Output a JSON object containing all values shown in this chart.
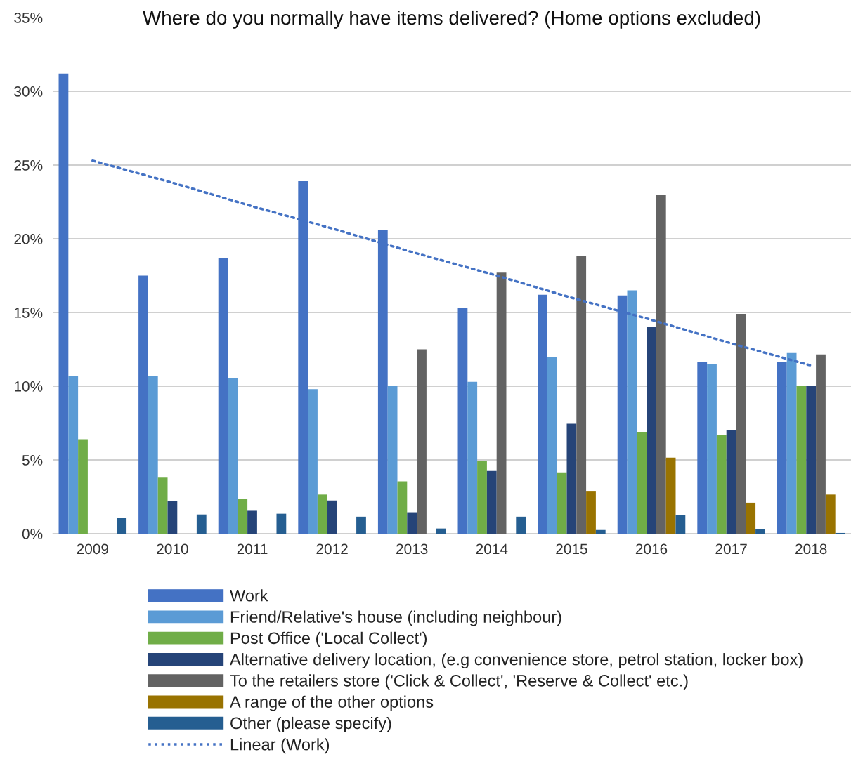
{
  "chart_data": {
    "type": "bar",
    "title": "Where do you normally have items delivered? (Home options excluded)",
    "categories": [
      "2009",
      "2010",
      "2011",
      "2012",
      "2013",
      "2014",
      "2015",
      "2016",
      "2017",
      "2018"
    ],
    "series": [
      {
        "name": "Work",
        "color": "#4472c4",
        "values": [
          31.2,
          17.5,
          18.7,
          23.9,
          20.6,
          15.3,
          16.2,
          16.15,
          11.65,
          11.65
        ]
      },
      {
        "name": "Friend/Relative's house (including neighbour)",
        "color": "#5b9bd5",
        "values": [
          10.7,
          10.7,
          10.55,
          9.8,
          10.0,
          10.3,
          12.0,
          16.5,
          11.5,
          12.25
        ]
      },
      {
        "name": "Post Office ('Local Collect')",
        "color": "#70ad47",
        "values": [
          6.4,
          3.8,
          2.35,
          2.65,
          3.55,
          4.95,
          4.15,
          6.9,
          6.7,
          10.05
        ]
      },
      {
        "name": "Alternative delivery location, (e.g convenience store, petrol station, locker box)",
        "color": "#264478",
        "values": [
          null,
          2.2,
          1.55,
          2.25,
          1.45,
          4.25,
          7.45,
          14.0,
          7.05,
          10.05
        ]
      },
      {
        "name": "To the retailers store ('Click & Collect', 'Reserve & Collect' etc.)",
        "color": "#636363",
        "values": [
          null,
          null,
          null,
          null,
          12.5,
          17.7,
          18.85,
          23.0,
          14.9,
          12.15
        ]
      },
      {
        "name": "A range of the other options",
        "color": "#997300",
        "values": [
          null,
          null,
          null,
          null,
          null,
          null,
          2.9,
          5.15,
          2.1,
          2.65
        ]
      },
      {
        "name": "Other (please specify)",
        "color": "#255e91",
        "values": [
          1.05,
          1.3,
          1.35,
          1.15,
          0.35,
          1.15,
          0.25,
          1.25,
          0.3,
          0.05
        ]
      },
      {
        "name": "Linear (Work)",
        "type": "line",
        "color": "#4472c4",
        "line_style": "dotted",
        "values": [
          25.3,
          23.8,
          22.2,
          20.7,
          19.1,
          17.6,
          16.0,
          14.5,
          12.9,
          11.4
        ]
      }
    ],
    "ylim": [
      0,
      35
    ],
    "yticks": [
      {
        "value": 0,
        "label": "0%"
      },
      {
        "value": 5,
        "label": "5%"
      },
      {
        "value": 10,
        "label": "10%"
      },
      {
        "value": 15,
        "label": "15%"
      },
      {
        "value": 20,
        "label": "20%"
      },
      {
        "value": 25,
        "label": "25%"
      },
      {
        "value": 30,
        "label": "30%"
      },
      {
        "value": 35,
        "label": "35%"
      }
    ],
    "grid": "y",
    "legend": "bottom"
  }
}
